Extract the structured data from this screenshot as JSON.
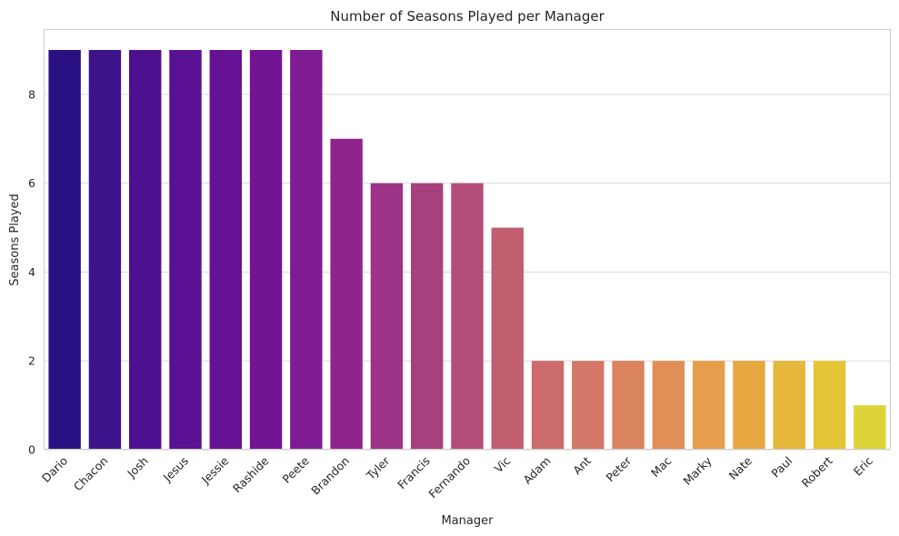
{
  "chart_data": {
    "type": "bar",
    "title": "Number of Seasons Played per Manager",
    "xlabel": "Manager",
    "ylabel": "Seasons Played",
    "categories": [
      "Dario",
      "Chacon",
      "Josh",
      "Jesus",
      "Jessie",
      "Rashide",
      "Peete",
      "Brandon",
      "Tyler",
      "Francis",
      "Fernando",
      "Vic",
      "Adam",
      "Ant",
      "Peter",
      "Mac",
      "Marky",
      "Nate",
      "Paul",
      "Robert",
      "Eric"
    ],
    "values": [
      9,
      9,
      9,
      9,
      9,
      9,
      9,
      7,
      6,
      6,
      6,
      5,
      2,
      2,
      2,
      2,
      2,
      2,
      2,
      2,
      1
    ],
    "colors": [
      "#2a1182",
      "#3f138a",
      "#4d1090",
      "#5a1193",
      "#661295",
      "#731495",
      "#801c93",
      "#8f258c",
      "#9c3386",
      "#a7417d",
      "#b44d77",
      "#c15e70",
      "#cb6b6b",
      "#d37869",
      "#db8460",
      "#e09057",
      "#e69e4c",
      "#e8a841",
      "#e5b73a",
      "#e4c535",
      "#ddd43a"
    ],
    "yticks": [
      "0",
      "2",
      "4",
      "6",
      "8"
    ],
    "ylim": [
      0,
      9.45
    ],
    "grid": "horizontal",
    "legend": "none"
  }
}
